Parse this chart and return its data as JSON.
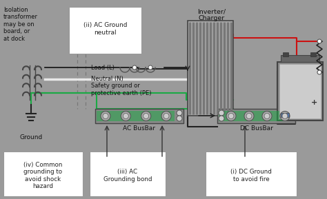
{
  "bg_color": "#9a9a9a",
  "fig_w": 4.74,
  "fig_h": 2.89,
  "dpi": 100,
  "labels": {
    "isolation_transformer": "Isolation\ntransformer\nmay be on\nboard, or\nat dock",
    "ground": "Ground",
    "ac_ground_neutral": "(ii) AC Ground\nneutral",
    "load_l": "Load (L)",
    "neutral_n": "Neutral (N)",
    "safety_ground": "Safety ground or\nprotective earth (PE)",
    "inverter_charger": "Inverter/\nCharger",
    "ac_busbar": "AC BusBar",
    "dc_busbar": "DC BusBar",
    "iv_label": "(iv) Common\ngrounding to\navoid shock\nhazard",
    "iii_label": "(iii) AC\nGrounding bond",
    "i_label": "(i) DC Ground\nto avoid fire"
  },
  "colors": {
    "green_wire": "#1aaa44",
    "red_wire": "#cc1111",
    "black_wire": "#111111",
    "white_wire": "#e8e8e8",
    "box_bg": "#ffffff",
    "box_border": "#999999",
    "busbar_bg": "#777777",
    "busbar_terminal_bg": "#aaaaaa",
    "busbar_terminal_border": "#555555",
    "inverter_bg": "#aaaaaa",
    "inverter_stripe": "#777777",
    "battery_body": "#888888",
    "battery_face": "#cccccc",
    "coil_color": "#444444",
    "ground_color": "#222222",
    "arrow_color": "#333333",
    "dashed_color": "#777777",
    "black_wire2": "#222222"
  }
}
